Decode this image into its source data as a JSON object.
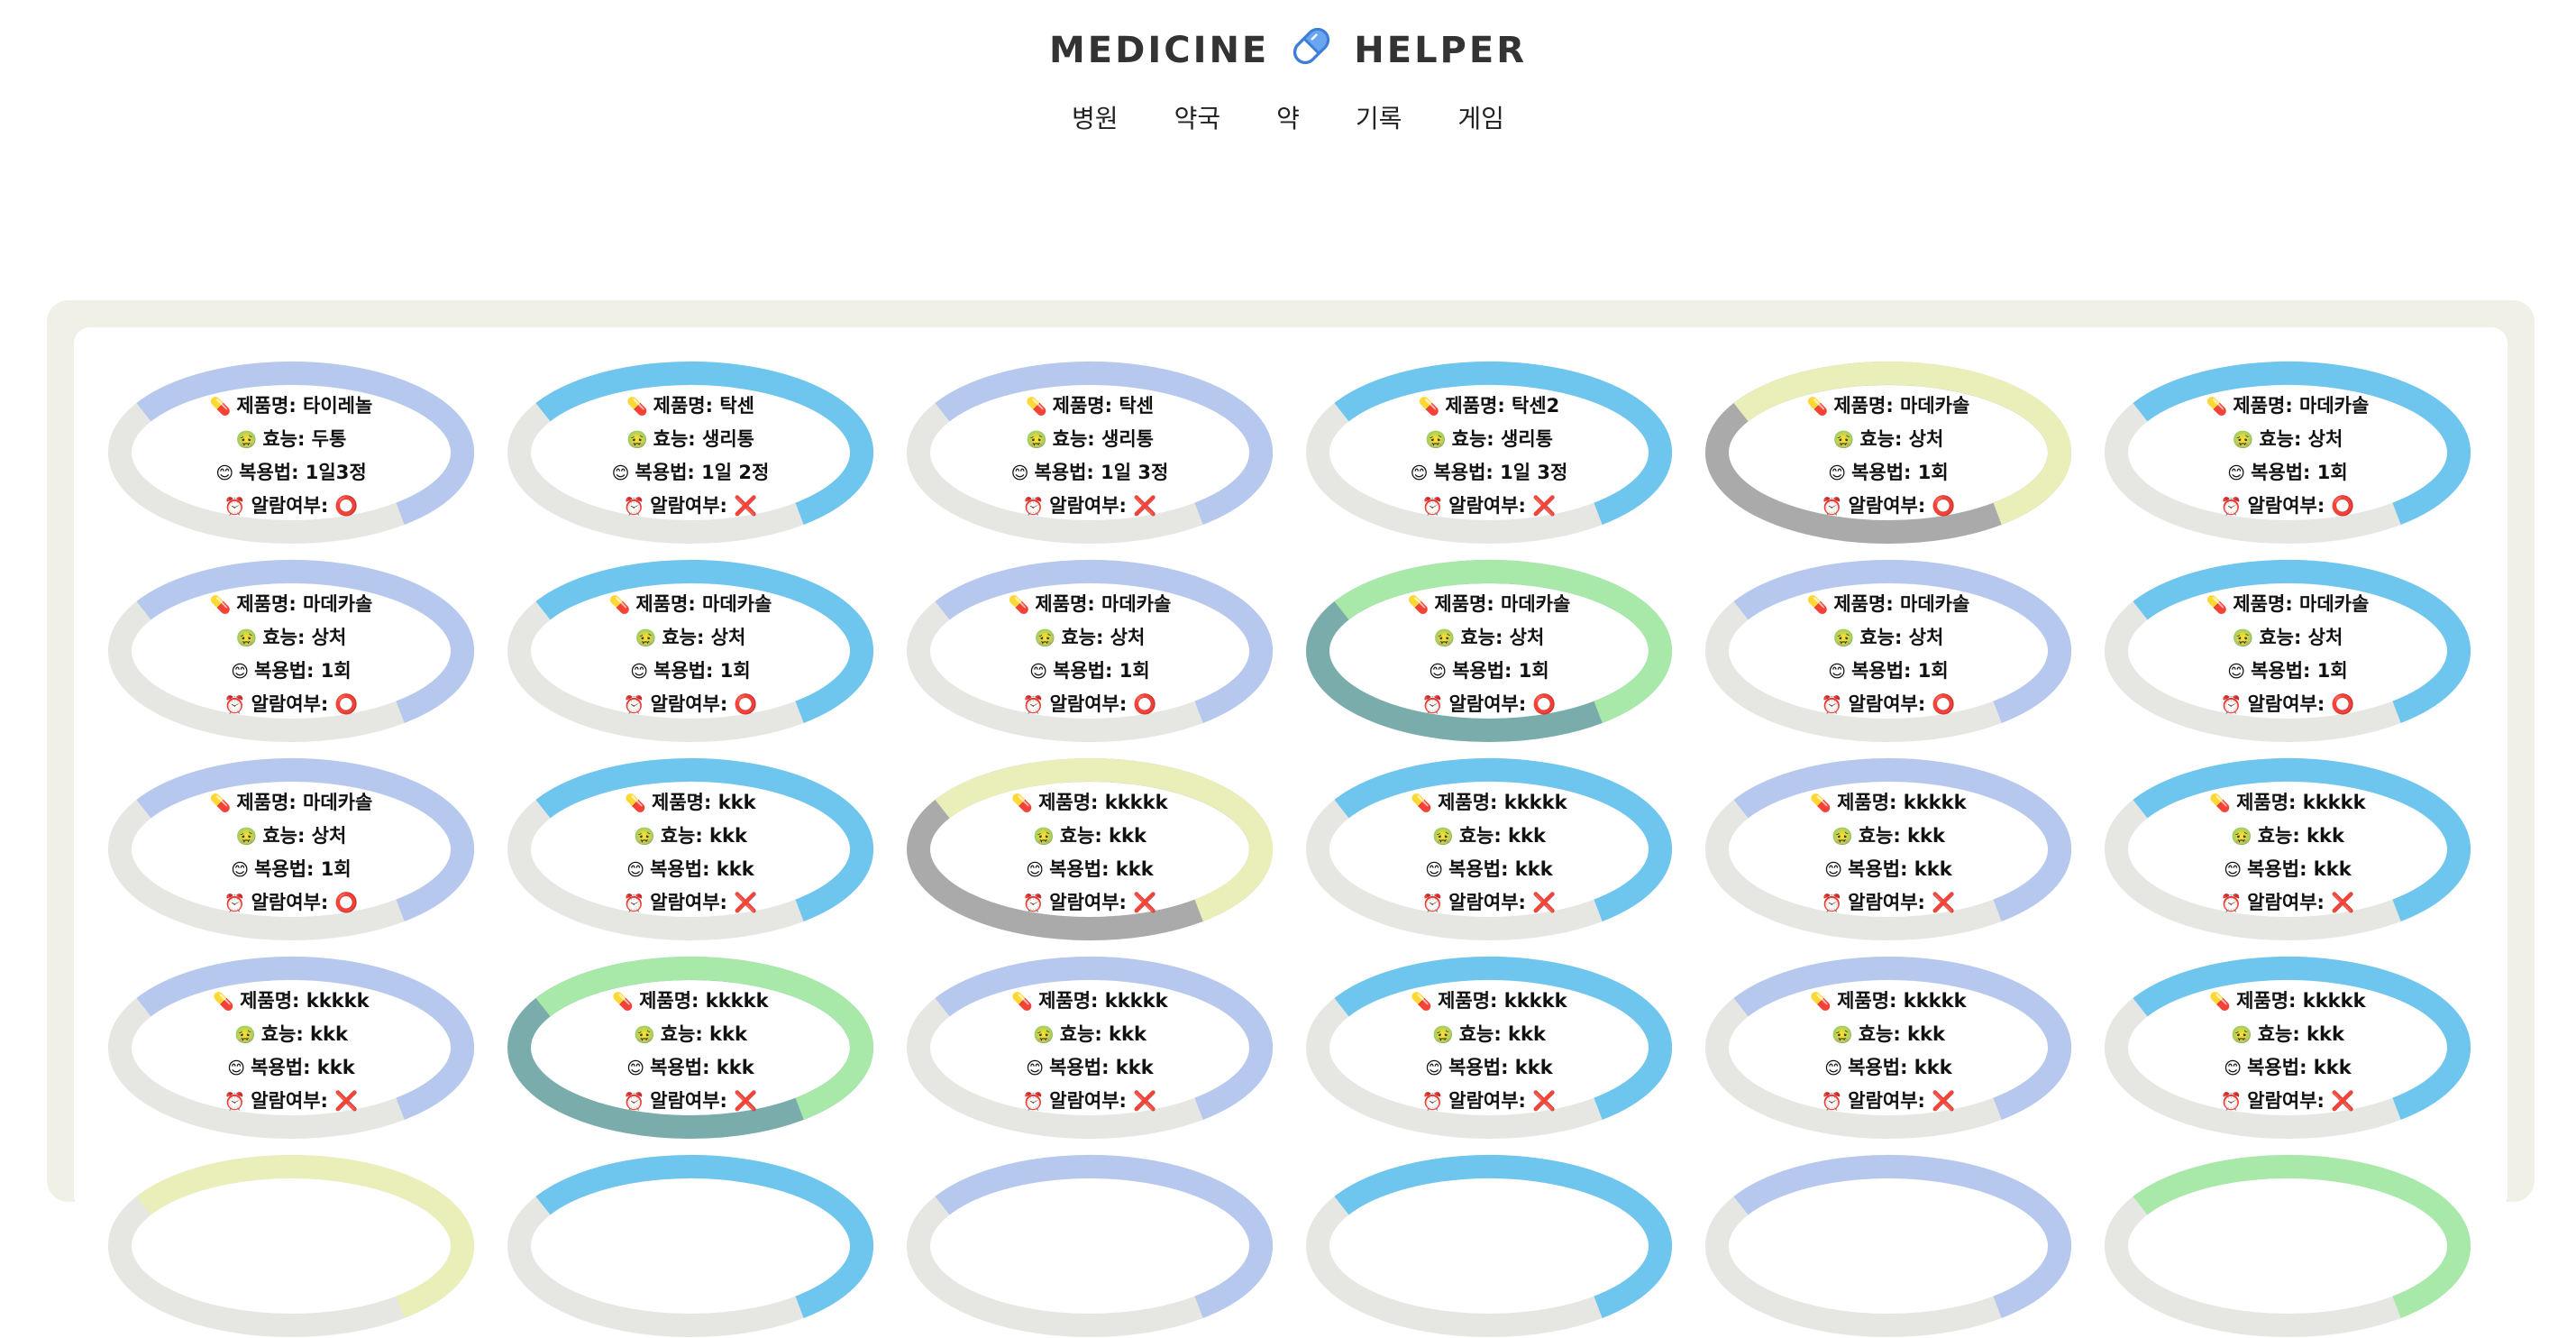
{
  "header": {
    "logo_left": "MEDICINE",
    "logo_right": "HELPER",
    "nav": [
      "병원",
      "약국",
      "약",
      "기록",
      "게임"
    ]
  },
  "labels": {
    "name": "제품명:",
    "effect": "효능:",
    "dosage": "복용법:",
    "alarm": "알람여부:"
  },
  "icons": {
    "name": "pill-icon",
    "effect": "nauseated-face-icon",
    "dosage": "smiling-face-icon",
    "alarm": "alarm-clock-icon"
  },
  "colors": {
    "blue": "#6ec5ee",
    "periwinkle": "#b7c8ee",
    "yellow": "#eaeeb8",
    "green": "#a8e9aa",
    "grey_track": "#e6e6e2",
    "dark_grey": "#aaaaaa",
    "teal": "#7aacac"
  },
  "medicines": [
    {
      "name": "타이레놀",
      "effect": "두통",
      "dosage": "1일3정",
      "alarm": "⭕",
      "color": "#b7c8ee",
      "dark": false
    },
    {
      "name": "탁센",
      "effect": "생리통",
      "dosage": "1일 2정",
      "alarm": "❌",
      "color": "#6ec5ee",
      "dark": false
    },
    {
      "name": "탁센",
      "effect": "생리통",
      "dosage": "1일 3정",
      "alarm": "❌",
      "color": "#b7c8ee",
      "dark": false
    },
    {
      "name": "탁센2",
      "effect": "생리통",
      "dosage": "1일 3정",
      "alarm": "❌",
      "color": "#6ec5ee",
      "dark": false
    },
    {
      "name": "마데카솔",
      "effect": "상처",
      "dosage": "1회",
      "alarm": "⭕",
      "color": "#eaeeb8",
      "dark": true
    },
    {
      "name": "마데카솔",
      "effect": "상처",
      "dosage": "1회",
      "alarm": "⭕",
      "color": "#6ec5ee",
      "dark": false
    },
    {
      "name": "마데카솔",
      "effect": "상처",
      "dosage": "1회",
      "alarm": "⭕",
      "color": "#b7c8ee",
      "dark": false
    },
    {
      "name": "마데카솔",
      "effect": "상처",
      "dosage": "1회",
      "alarm": "⭕",
      "color": "#6ec5ee",
      "dark": false
    },
    {
      "name": "마데카솔",
      "effect": "상처",
      "dosage": "1회",
      "alarm": "⭕",
      "color": "#b7c8ee",
      "dark": false
    },
    {
      "name": "마데카솔",
      "effect": "상처",
      "dosage": "1회",
      "alarm": "⭕",
      "color": "#a8e9aa",
      "dark": true,
      "teal": true
    },
    {
      "name": "마데카솔",
      "effect": "상처",
      "dosage": "1회",
      "alarm": "⭕",
      "color": "#b7c8ee",
      "dark": false
    },
    {
      "name": "마데카솔",
      "effect": "상처",
      "dosage": "1회",
      "alarm": "⭕",
      "color": "#6ec5ee",
      "dark": false
    },
    {
      "name": "마데카솔",
      "effect": "상처",
      "dosage": "1회",
      "alarm": "⭕",
      "color": "#b7c8ee",
      "dark": false
    },
    {
      "name": "kkk",
      "effect": "kkk",
      "dosage": "kkk",
      "alarm": "❌",
      "color": "#6ec5ee",
      "dark": false
    },
    {
      "name": "kkkkk",
      "effect": "kkk",
      "dosage": "kkk",
      "alarm": "❌",
      "color": "#eaeeb8",
      "dark": true
    },
    {
      "name": "kkkkk",
      "effect": "kkk",
      "dosage": "kkk",
      "alarm": "❌",
      "color": "#6ec5ee",
      "dark": false
    },
    {
      "name": "kkkkk",
      "effect": "kkk",
      "dosage": "kkk",
      "alarm": "❌",
      "color": "#b7c8ee",
      "dark": false
    },
    {
      "name": "kkkkk",
      "effect": "kkk",
      "dosage": "kkk",
      "alarm": "❌",
      "color": "#6ec5ee",
      "dark": false
    },
    {
      "name": "kkkkk",
      "effect": "kkk",
      "dosage": "kkk",
      "alarm": "❌",
      "color": "#b7c8ee",
      "dark": false
    },
    {
      "name": "kkkkk",
      "effect": "kkk",
      "dosage": "kkk",
      "alarm": "❌",
      "color": "#a8e9aa",
      "dark": true,
      "teal": true
    },
    {
      "name": "kkkkk",
      "effect": "kkk",
      "dosage": "kkk",
      "alarm": "❌",
      "color": "#b7c8ee",
      "dark": false
    },
    {
      "name": "kkkkk",
      "effect": "kkk",
      "dosage": "kkk",
      "alarm": "❌",
      "color": "#6ec5ee",
      "dark": false
    },
    {
      "name": "kkkkk",
      "effect": "kkk",
      "dosage": "kkk",
      "alarm": "❌",
      "color": "#b7c8ee",
      "dark": false
    },
    {
      "name": "kkkkk",
      "effect": "kkk",
      "dosage": "kkk",
      "alarm": "❌",
      "color": "#6ec5ee",
      "dark": false
    }
  ],
  "partial_row_colors": [
    "#eaeeb8",
    "#6ec5ee",
    "#b7c8ee",
    "#6ec5ee",
    "#b7c8ee",
    "#a8e9aa"
  ]
}
